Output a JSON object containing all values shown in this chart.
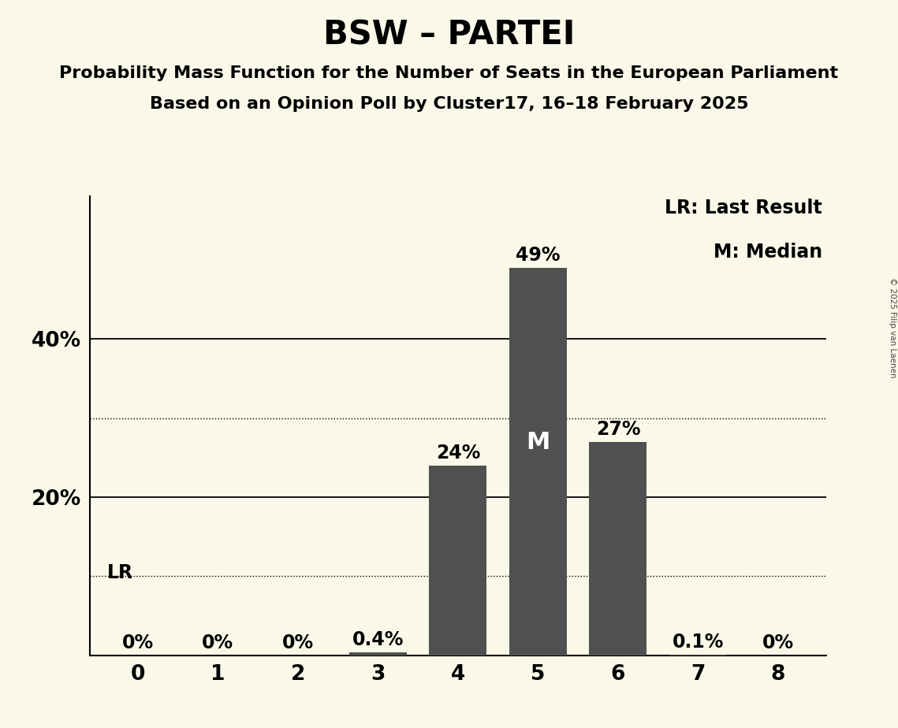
{
  "title": "BSW – PARTEI",
  "subtitle1": "Probability Mass Function for the Number of Seats in the European Parliament",
  "subtitle2": "Based on an Opinion Poll by Cluster17, 16–18 February 2025",
  "copyright": "© 2025 Filip van Laenen",
  "categories": [
    0,
    1,
    2,
    3,
    4,
    5,
    6,
    7,
    8
  ],
  "values": [
    0.0,
    0.0,
    0.0,
    0.004,
    0.24,
    0.49,
    0.27,
    0.001,
    0.0
  ],
  "bar_labels": [
    "0%",
    "0%",
    "0%",
    "0.4%",
    "24%",
    "49%",
    "27%",
    "0.1%",
    "0%"
  ],
  "bar_color": "#505050",
  "background_color": "#faf8e8",
  "median": 5,
  "lr_seat": 0,
  "lr_label": "LR",
  "legend_lr": "LR: Last Result",
  "legend_m": "M: Median",
  "solid_yticks": [
    0.2,
    0.4
  ],
  "dotted_yticks": [
    0.1,
    0.3
  ],
  "ylim": [
    0,
    0.58
  ],
  "title_fontsize": 30,
  "subtitle_fontsize": 16,
  "label_fontsize": 17,
  "tick_fontsize": 19
}
